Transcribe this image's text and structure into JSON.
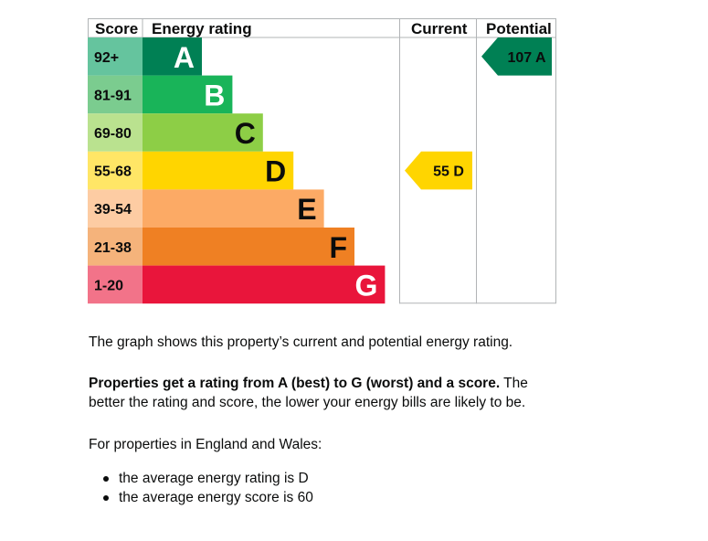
{
  "chart_data": {
    "type": "bar",
    "headers": {
      "score": "Score",
      "rating": "Energy rating",
      "current": "Current",
      "potential": "Potential"
    },
    "bands": [
      {
        "range": "92+",
        "letter": "A",
        "color": "#008054",
        "score_color": "#65c49e"
      },
      {
        "range": "81-91",
        "letter": "B",
        "color": "#19b459",
        "score_color": "#7bcc8f"
      },
      {
        "range": "69-80",
        "letter": "C",
        "color": "#8dce46",
        "score_color": "#bae28f"
      },
      {
        "range": "55-68",
        "letter": "D",
        "color": "#ffd500",
        "score_color": "#ffe666"
      },
      {
        "range": "39-54",
        "letter": "E",
        "color": "#fcaa65",
        "score_color": "#fdcca3"
      },
      {
        "range": "21-38",
        "letter": "F",
        "color": "#ef8023",
        "score_color": "#f5b37b"
      },
      {
        "range": "1-20",
        "letter": "G",
        "color": "#e9153b",
        "score_color": "#f27389"
      }
    ],
    "current": {
      "score": 55,
      "letter": "D",
      "label": "55  D"
    },
    "potential": {
      "score": 107,
      "letter": "A",
      "label": "107  A"
    }
  },
  "text": {
    "intro": "The graph shows this property’s current and potential energy rating.",
    "rating_bold": "Properties get a rating from A (best) to G (worst) and a score.",
    "rating_rest": " The better the rating and score, the lower your energy bills are likely to be.",
    "region": "For properties in England and Wales:",
    "bullets": [
      "the average energy rating is D",
      "the average energy score is 60"
    ]
  }
}
